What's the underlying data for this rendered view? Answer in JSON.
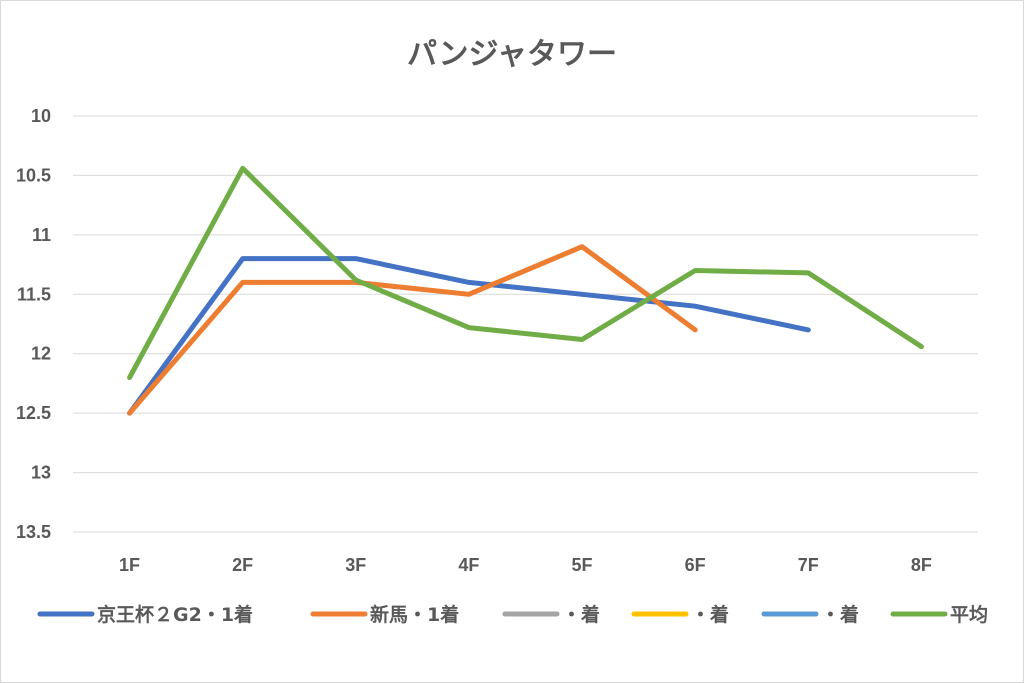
{
  "chart_data": {
    "type": "line",
    "title": "パンジャタワー",
    "xlabel": "",
    "ylabel": "",
    "categories": [
      "1F",
      "2F",
      "3F",
      "4F",
      "5F",
      "6F",
      "7F",
      "8F"
    ],
    "y_ticks": [
      "10",
      "10.5",
      "11",
      "11.5",
      "12",
      "12.5",
      "13",
      "13.5"
    ],
    "ylim": [
      10,
      13.5
    ],
    "y_axis_reversed": true,
    "grid": true,
    "legend_position": "bottom",
    "series": [
      {
        "name": "京王杯２G2・1着",
        "color": "#4472c4",
        "values": [
          12.5,
          11.2,
          11.2,
          11.4,
          11.5,
          11.6,
          11.8,
          null
        ]
      },
      {
        "name": "新馬・1着",
        "color": "#ed7d31",
        "values": [
          12.5,
          11.4,
          11.4,
          11.5,
          11.1,
          11.8,
          null,
          null
        ]
      },
      {
        "name": "・着",
        "color": "#a5a5a5",
        "values": [
          null,
          null,
          null,
          null,
          null,
          null,
          null,
          null
        ]
      },
      {
        "name": "・着",
        "color": "#ffc000",
        "values": [
          null,
          null,
          null,
          null,
          null,
          null,
          null,
          null
        ]
      },
      {
        "name": "・着",
        "color": "#5b9bd5",
        "values": [
          null,
          null,
          null,
          null,
          null,
          null,
          null,
          null
        ]
      },
      {
        "name": "平均",
        "color": "#70ad47",
        "values": [
          12.2,
          10.44,
          11.38,
          11.78,
          11.88,
          11.3,
          11.32,
          11.94
        ]
      }
    ]
  }
}
